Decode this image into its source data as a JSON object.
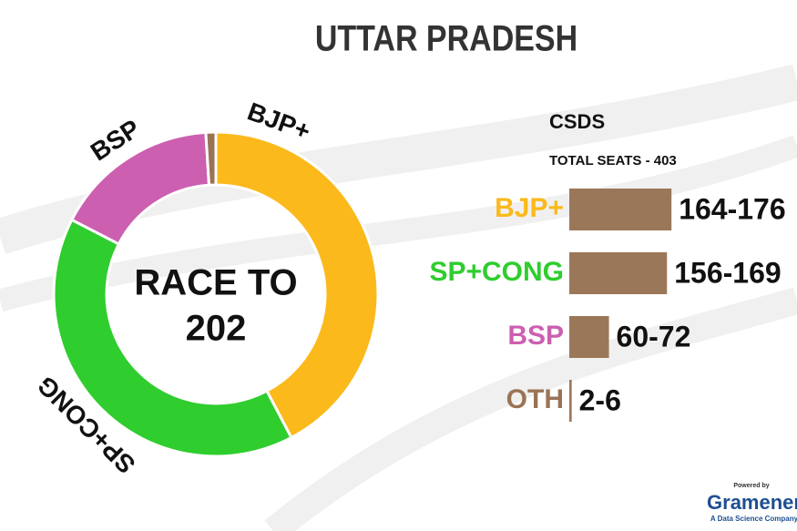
{
  "title": "UTTAR PRADESH",
  "chart_data": [
    {
      "type": "donut",
      "categories": [
        "BJP+",
        "SP+CONG",
        "BSP",
        null
      ],
      "values": [
        170,
        162,
        66,
        4
      ],
      "colors": [
        "#fbb91b",
        "#2fcd2e",
        "#cc5fb0",
        "#9a7356"
      ],
      "center_text": [
        "RACE TO",
        "202"
      ]
    },
    {
      "type": "range-bar",
      "title": "CSDS",
      "subtitle": "TOTAL SEATS - 403",
      "categories": [
        "BJP+",
        "SP+CONG",
        "BSP",
        "OTH"
      ],
      "category_colors": [
        "#fbb91b",
        "#2fcd2e",
        "#cc5fb0",
        "#9a7356"
      ],
      "low": [
        164,
        156,
        60,
        2
      ],
      "high": [
        176,
        169,
        72,
        6
      ],
      "value_labels": [
        "164-176",
        "156-169",
        "60-72",
        "2-6"
      ],
      "color": "#9b7759"
    }
  ],
  "footer": {
    "powered": "Powered by",
    "brand": "Gramener",
    "tagline": "A Data Science Company"
  }
}
